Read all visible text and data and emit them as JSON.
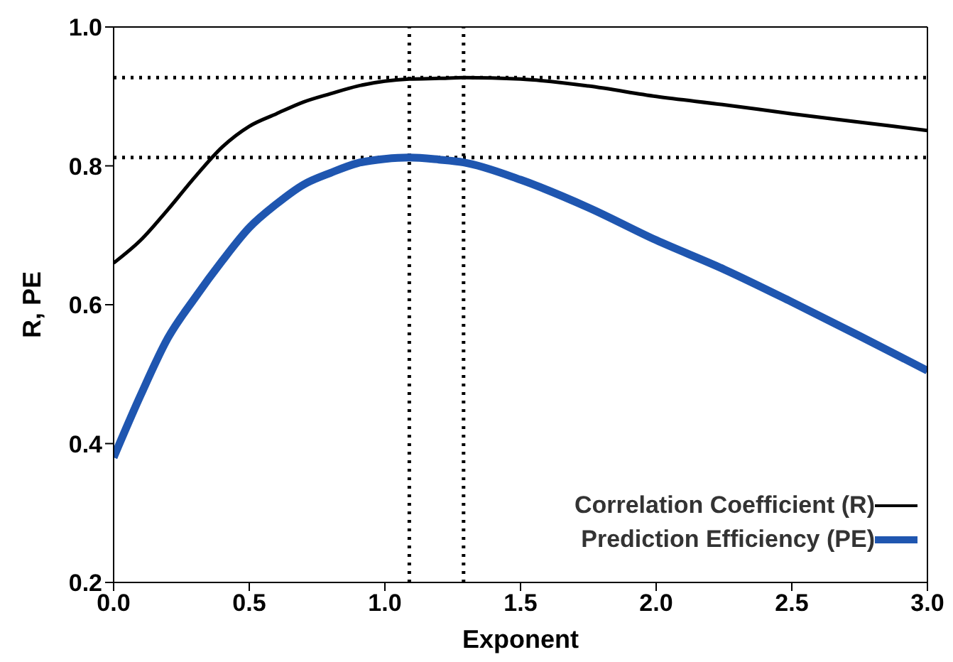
{
  "chart_data": {
    "type": "line",
    "xlabel": "Exponent",
    "ylabel": "R, PE",
    "xlim": [
      0,
      3
    ],
    "ylim": [
      0.2,
      1.0
    ],
    "xticks": [
      {
        "value": 0,
        "label": "0.0"
      },
      {
        "value": 0.5,
        "label": "0.5"
      },
      {
        "value": 1,
        "label": "1.0"
      },
      {
        "value": 1.5,
        "label": "1.5"
      },
      {
        "value": 2,
        "label": "2.0"
      },
      {
        "value": 2.5,
        "label": "2.5"
      },
      {
        "value": 3,
        "label": "3.0"
      }
    ],
    "yticks": [
      {
        "value": 0.2,
        "label": "0.2"
      },
      {
        "value": 0.4,
        "label": "0.4"
      },
      {
        "value": 0.6,
        "label": "0.6"
      },
      {
        "value": 0.8,
        "label": "0.8"
      },
      {
        "value": 1.0,
        "label": "1.0"
      }
    ],
    "x": [
      0,
      0.1,
      0.2,
      0.3,
      0.4,
      0.5,
      0.6,
      0.7,
      0.8,
      0.9,
      1.0,
      1.09,
      1.2,
      1.29,
      1.5,
      1.75,
      2.0,
      2.25,
      2.5,
      2.75,
      3.0
    ],
    "series": [
      {
        "name": "Correlation Coefficient (R)",
        "color": "#000000",
        "values": [
          0.66,
          0.693,
          0.737,
          0.784,
          0.827,
          0.857,
          0.875,
          0.892,
          0.904,
          0.915,
          0.922,
          0.925,
          0.926,
          0.927,
          0.925,
          0.915,
          0.9,
          0.888,
          0.875,
          0.863,
          0.851
        ]
      },
      {
        "name": "Prediction Efficiency (PE)",
        "color": "#1f56b0",
        "values": [
          0.38,
          0.47,
          0.552,
          0.61,
          0.663,
          0.711,
          0.745,
          0.773,
          0.79,
          0.804,
          0.81,
          0.812,
          0.809,
          0.805,
          0.78,
          0.74,
          0.693,
          0.651,
          0.604,
          0.555,
          0.505
        ]
      }
    ],
    "ref_lines": [
      {
        "axis": "y",
        "value": 0.927,
        "line_style": "dotted"
      },
      {
        "axis": "y",
        "value": 0.812,
        "line_style": "dotted"
      },
      {
        "axis": "x",
        "value": 1.09,
        "line_style": "dotted"
      },
      {
        "axis": "x",
        "value": 1.29,
        "line_style": "dotted"
      }
    ],
    "legend": "bottom right",
    "marker": "none",
    "line_style": "solid"
  }
}
